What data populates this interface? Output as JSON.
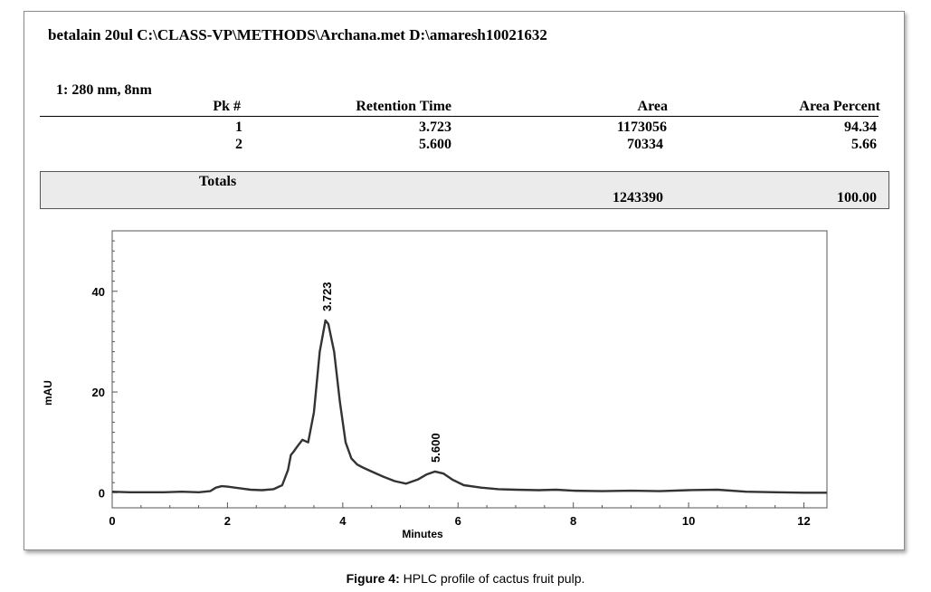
{
  "header": {
    "title": "betalain 20ul C:\\CLASS-VP\\METHODS\\Archana.met D:\\amaresh10021632",
    "channel": "1: 280 nm, 8nm"
  },
  "table": {
    "columns": [
      "Pk #",
      "Retention Time",
      "Area",
      "Area Percent"
    ],
    "rows": [
      {
        "pk": "1",
        "rt": "3.723",
        "area": "1173056",
        "pct": "94.34"
      },
      {
        "pk": "2",
        "rt": "5.600",
        "area": "70334",
        "pct": "5.66"
      }
    ],
    "totals_label": "Totals",
    "totals_area": "1243390",
    "totals_pct": "100.00"
  },
  "caption": {
    "label": "Figure 4:",
    "text": " HPLC profile of cactus fruit pulp."
  },
  "chart_data": {
    "type": "line",
    "xlabel": "Minutes",
    "ylabel": "mAU",
    "xlim": [
      0,
      12.4
    ],
    "ylim": [
      -3,
      52
    ],
    "x_ticks": [
      0,
      2,
      4,
      6,
      8,
      10,
      12
    ],
    "y_ticks": [
      0,
      20,
      40
    ],
    "grid": false,
    "series": [
      {
        "x": [
          0,
          0.3,
          0.6,
          0.9,
          1.2,
          1.5,
          1.7,
          1.8,
          1.9,
          2.0,
          2.2,
          2.4,
          2.6,
          2.8,
          2.95,
          3.05,
          3.1,
          3.15,
          3.2,
          3.3,
          3.4,
          3.5,
          3.6,
          3.7,
          3.75,
          3.85,
          3.95,
          4.05,
          4.15,
          4.25,
          4.35,
          4.5,
          4.7,
          4.9,
          5.1,
          5.3,
          5.45,
          5.6,
          5.75,
          5.9,
          6.1,
          6.4,
          6.7,
          7.0,
          7.4,
          7.7,
          8.0,
          8.5,
          9.0,
          9.5,
          10.0,
          10.5,
          11.0,
          11.5,
          12.0,
          12.4
        ],
        "y": [
          0.2,
          0.1,
          0.1,
          0.1,
          0.2,
          0.1,
          0.3,
          1.0,
          1.3,
          1.2,
          0.9,
          0.6,
          0.5,
          0.7,
          1.5,
          4.5,
          7.5,
          8.2,
          9.0,
          10.5,
          10.0,
          16.0,
          28.0,
          34.2,
          33.5,
          28.0,
          18.0,
          10.0,
          6.8,
          5.6,
          5.0,
          4.2,
          3.2,
          2.3,
          1.8,
          2.6,
          3.6,
          4.2,
          3.8,
          2.6,
          1.5,
          1.0,
          0.7,
          0.6,
          0.5,
          0.6,
          0.4,
          0.3,
          0.4,
          0.3,
          0.5,
          0.6,
          0.2,
          0.1,
          0.0,
          0.0
        ]
      }
    ],
    "annotations": [
      {
        "x": 3.723,
        "y": 34.2,
        "text": "3.723"
      },
      {
        "x": 5.6,
        "y": 4.2,
        "text": "5.600"
      }
    ]
  }
}
